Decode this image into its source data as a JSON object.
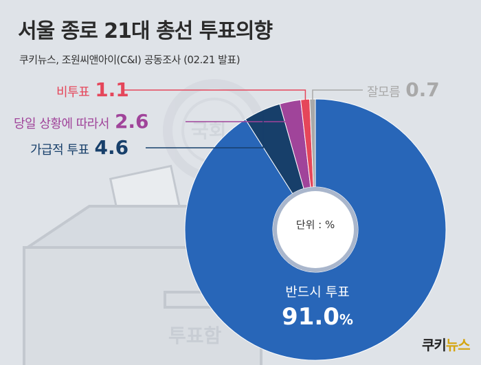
{
  "title": "서울 종로 21대 총선 투표의향",
  "subtitle": "쿠키뉴스, 조원씨앤아이(C&I) 공동조사 (02.21 발표)",
  "unit_label": "단위 : %",
  "brand": {
    "prefix": "쿠키",
    "accent": "뉴스"
  },
  "background_text": {
    "stamp": "국회",
    "ballot_box": "투표함"
  },
  "colors": {
    "must_vote": "#2866b8",
    "if_possible": "#173f6a",
    "depending": "#a0449a",
    "not_vote": "#e5465a",
    "dont_know": "#a9a9a9"
  },
  "chart_data": {
    "type": "pie",
    "donut": true,
    "slices": [
      {
        "label": "반드시 투표",
        "value": 91.0,
        "display": "91.0",
        "unit": "%"
      },
      {
        "label": "가급적 투표",
        "value": 4.6,
        "display": "4.6"
      },
      {
        "label": "당일 상황에 따라서",
        "value": 2.6,
        "display": "2.6"
      },
      {
        "label": "비투표",
        "value": 1.1,
        "display": "1.1"
      },
      {
        "label": "잘모름",
        "value": 0.7,
        "display": "0.7"
      }
    ]
  }
}
